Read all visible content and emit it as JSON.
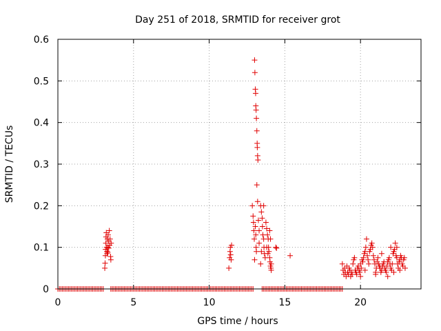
{
  "chart_data": {
    "type": "scatter",
    "title": "Day 251 of 2018, SRMTID for receiver grot",
    "xlabel": "GPS time / hours",
    "ylabel": "SRMTID / TECUs",
    "xlim": [
      0,
      24
    ],
    "ylim": [
      0,
      0.6
    ],
    "xticks": [
      0,
      5,
      10,
      15,
      20
    ],
    "xtick_labels": [
      "0",
      "5",
      "10",
      "15",
      "20"
    ],
    "yticks": [
      0,
      0.1,
      0.2,
      0.3,
      0.4,
      0.5,
      0.6
    ],
    "ytick_labels": [
      "0",
      "0.1",
      "0.2",
      "0.3",
      "0.4",
      "0.5",
      "0.6"
    ],
    "grid": true,
    "marker": "+",
    "series": [
      {
        "name": "SRMTID",
        "color": "#e00000",
        "baseline_x_ranges": [
          [
            0.0,
            3.05
          ],
          [
            3.5,
            11.4
          ],
          [
            11.5,
            12.9
          ],
          [
            13.5,
            14.3
          ],
          [
            14.4,
            18.8
          ]
        ],
        "baseline_y": 0,
        "baseline_step": 0.1,
        "points": [
          [
            3.1,
            0.05
          ],
          [
            3.12,
            0.062
          ],
          [
            3.14,
            0.08
          ],
          [
            3.15,
            0.095
          ],
          [
            3.17,
            0.11
          ],
          [
            3.18,
            0.125
          ],
          [
            3.2,
            0.135
          ],
          [
            3.22,
            0.1
          ],
          [
            3.24,
            0.09
          ],
          [
            3.25,
            0.085
          ],
          [
            3.27,
            0.12
          ],
          [
            3.29,
            0.1
          ],
          [
            3.3,
            0.088
          ],
          [
            3.32,
            0.13
          ],
          [
            3.34,
            0.115
          ],
          [
            3.36,
            0.098
          ],
          [
            3.4,
            0.14
          ],
          [
            3.42,
            0.105
          ],
          [
            3.45,
            0.12
          ],
          [
            3.48,
            0.078
          ],
          [
            3.5,
            0.07
          ],
          [
            3.52,
            0.11
          ],
          [
            11.3,
            0.05
          ],
          [
            11.35,
            0.075
          ],
          [
            11.38,
            0.09
          ],
          [
            11.4,
            0.1
          ],
          [
            11.42,
            0.082
          ],
          [
            11.45,
            0.07
          ],
          [
            11.48,
            0.105
          ],
          [
            12.85,
            0.2
          ],
          [
            12.9,
            0.175
          ],
          [
            12.93,
            0.16
          ],
          [
            12.95,
            0.14
          ],
          [
            12.98,
            0.12
          ],
          [
            13.0,
            0.55
          ],
          [
            13.02,
            0.52
          ],
          [
            13.05,
            0.48
          ],
          [
            13.07,
            0.47
          ],
          [
            13.08,
            0.44
          ],
          [
            13.1,
            0.43
          ],
          [
            13.12,
            0.41
          ],
          [
            13.15,
            0.38
          ],
          [
            13.17,
            0.35
          ],
          [
            13.18,
            0.34
          ],
          [
            13.2,
            0.32
          ],
          [
            13.22,
            0.31
          ],
          [
            13.15,
            0.25
          ],
          [
            13.2,
            0.21
          ],
          [
            13.05,
            0.15
          ],
          [
            13.08,
            0.13
          ],
          [
            13.1,
            0.1
          ],
          [
            13.12,
            0.09
          ],
          [
            13.0,
            0.07
          ],
          [
            13.25,
            0.165
          ],
          [
            13.3,
            0.14
          ],
          [
            13.3,
            0.11
          ],
          [
            13.4,
            0.2
          ],
          [
            13.45,
            0.185
          ],
          [
            13.5,
            0.17
          ],
          [
            13.52,
            0.15
          ],
          [
            13.55,
            0.13
          ],
          [
            13.6,
            0.12
          ],
          [
            13.62,
            0.1
          ],
          [
            13.65,
            0.085
          ],
          [
            13.7,
            0.075
          ],
          [
            13.4,
            0.06
          ],
          [
            13.45,
            0.09
          ],
          [
            13.6,
            0.2
          ],
          [
            13.75,
            0.16
          ],
          [
            13.8,
            0.145
          ],
          [
            13.85,
            0.13
          ],
          [
            13.9,
            0.12
          ],
          [
            13.92,
            0.1
          ],
          [
            13.95,
            0.09
          ],
          [
            14.0,
            0.075
          ],
          [
            14.02,
            0.065
          ],
          [
            14.05,
            0.055
          ],
          [
            14.08,
            0.05
          ],
          [
            14.1,
            0.045
          ],
          [
            13.8,
            0.1
          ],
          [
            13.88,
            0.085
          ],
          [
            14.0,
            0.14
          ],
          [
            14.05,
            0.12
          ],
          [
            14.1,
            0.06
          ],
          [
            14.4,
            0.1
          ],
          [
            14.45,
            0.098
          ],
          [
            15.35,
            0.08
          ],
          [
            18.8,
            0.06
          ],
          [
            18.85,
            0.045
          ],
          [
            18.9,
            0.035
          ],
          [
            18.95,
            0.05
          ],
          [
            19.0,
            0.04
          ],
          [
            19.05,
            0.03
          ],
          [
            19.1,
            0.055
          ],
          [
            19.15,
            0.04
          ],
          [
            19.2,
            0.035
          ],
          [
            19.25,
            0.05
          ],
          [
            19.3,
            0.045
          ],
          [
            19.35,
            0.03
          ],
          [
            19.4,
            0.04
          ],
          [
            19.45,
            0.035
          ],
          [
            19.5,
            0.06
          ],
          [
            19.55,
            0.07
          ],
          [
            19.6,
            0.075
          ],
          [
            19.65,
            0.045
          ],
          [
            19.7,
            0.04
          ],
          [
            19.75,
            0.035
          ],
          [
            19.8,
            0.05
          ],
          [
            19.85,
            0.055
          ],
          [
            19.9,
            0.045
          ],
          [
            19.95,
            0.04
          ],
          [
            20.0,
            0.06
          ],
          [
            20.05,
            0.05
          ],
          [
            20.1,
            0.07
          ],
          [
            20.15,
            0.065
          ],
          [
            20.2,
            0.075
          ],
          [
            20.25,
            0.085
          ],
          [
            20.3,
            0.09
          ],
          [
            20.35,
            0.1
          ],
          [
            20.4,
            0.12
          ],
          [
            20.45,
            0.08
          ],
          [
            20.5,
            0.07
          ],
          [
            20.55,
            0.06
          ],
          [
            20.6,
            0.09
          ],
          [
            20.65,
            0.095
          ],
          [
            20.7,
            0.105
          ],
          [
            20.75,
            0.11
          ],
          [
            20.8,
            0.1
          ],
          [
            20.85,
            0.08
          ],
          [
            20.9,
            0.07
          ],
          [
            20.95,
            0.06
          ],
          [
            21.0,
            0.04
          ],
          [
            21.05,
            0.05
          ],
          [
            21.1,
            0.065
          ],
          [
            21.15,
            0.075
          ],
          [
            21.2,
            0.06
          ],
          [
            21.25,
            0.055
          ],
          [
            21.3,
            0.05
          ],
          [
            21.35,
            0.04
          ],
          [
            21.4,
            0.045
          ],
          [
            21.45,
            0.055
          ],
          [
            21.5,
            0.06
          ],
          [
            21.55,
            0.065
          ],
          [
            21.6,
            0.05
          ],
          [
            21.65,
            0.045
          ],
          [
            21.7,
            0.04
          ],
          [
            21.75,
            0.055
          ],
          [
            21.8,
            0.065
          ],
          [
            21.85,
            0.07
          ],
          [
            21.9,
            0.075
          ],
          [
            21.95,
            0.06
          ],
          [
            22.0,
            0.05
          ],
          [
            22.05,
            0.045
          ],
          [
            22.1,
            0.06
          ],
          [
            22.15,
            0.085
          ],
          [
            22.2,
            0.09
          ],
          [
            22.25,
            0.095
          ],
          [
            22.3,
            0.11
          ],
          [
            22.35,
            0.08
          ],
          [
            22.4,
            0.075
          ],
          [
            22.45,
            0.06
          ],
          [
            22.5,
            0.05
          ],
          [
            22.55,
            0.065
          ],
          [
            22.6,
            0.07
          ],
          [
            22.65,
            0.08
          ],
          [
            22.7,
            0.075
          ],
          [
            22.75,
            0.06
          ],
          [
            22.8,
            0.055
          ],
          [
            22.85,
            0.07
          ],
          [
            22.9,
            0.075
          ],
          [
            22.95,
            0.05
          ],
          [
            20.0,
            0.03
          ],
          [
            20.3,
            0.045
          ],
          [
            21.0,
            0.035
          ],
          [
            21.8,
            0.03
          ],
          [
            22.2,
            0.04
          ],
          [
            22.6,
            0.045
          ],
          [
            21.4,
            0.085
          ],
          [
            22.0,
            0.1
          ],
          [
            22.4,
            0.1
          ]
        ]
      }
    ]
  }
}
